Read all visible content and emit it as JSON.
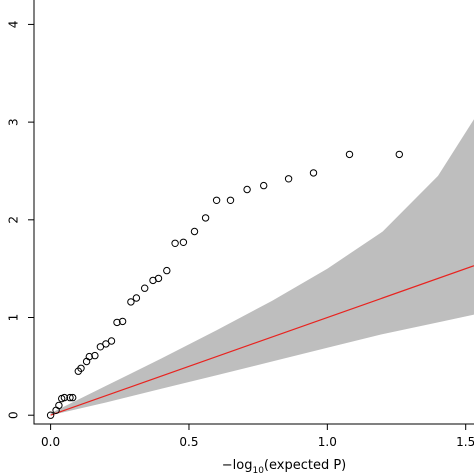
{
  "chart_data": {
    "type": "scatter",
    "title": "",
    "xlabel": {
      "prefix": "−log",
      "subscript": "10",
      "suffix": "(expected P)"
    },
    "ylabel": "",
    "xlim": [
      -0.06,
      1.53
    ],
    "ylim": [
      -0.09,
      4.25
    ],
    "xticks": [
      0.0,
      0.5,
      1.0,
      1.5
    ],
    "xtick_labels": [
      "0.0",
      "0.5",
      "1.0",
      "1.5"
    ],
    "yticks": [
      0,
      1,
      2,
      3,
      4
    ],
    "ytick_labels": [
      "0",
      "1",
      "2",
      "3",
      "4"
    ],
    "grid": false,
    "legend": "none",
    "points": {
      "x": [
        0.0,
        0.02,
        0.03,
        0.04,
        0.05,
        0.07,
        0.08,
        0.1,
        0.11,
        0.13,
        0.14,
        0.16,
        0.18,
        0.2,
        0.22,
        0.24,
        0.26,
        0.29,
        0.31,
        0.34,
        0.37,
        0.39,
        0.42,
        0.45,
        0.48,
        0.52,
        0.56,
        0.6,
        0.65,
        0.71,
        0.77,
        0.86,
        0.95,
        1.08,
        1.26
      ],
      "y": [
        0.0,
        0.05,
        0.1,
        0.17,
        0.18,
        0.18,
        0.18,
        0.45,
        0.48,
        0.55,
        0.6,
        0.61,
        0.7,
        0.73,
        0.76,
        0.95,
        0.96,
        1.16,
        1.2,
        1.3,
        1.38,
        1.4,
        1.48,
        1.76,
        1.77,
        1.88,
        2.02,
        2.2,
        2.2,
        2.31,
        2.35,
        2.42,
        2.48,
        2.67,
        2.67
      ]
    },
    "expected_line": {
      "x": [
        0.0,
        1.53
      ],
      "y": [
        0.0,
        1.53
      ]
    },
    "confidence_band": {
      "x": [
        0.0,
        0.2,
        0.4,
        0.6,
        0.8,
        1.0,
        1.2,
        1.4,
        1.53
      ],
      "upper": [
        0.02,
        0.3,
        0.58,
        0.87,
        1.17,
        1.5,
        1.88,
        2.45,
        3.03
      ],
      "lower": [
        0.0,
        0.13,
        0.27,
        0.41,
        0.55,
        0.69,
        0.83,
        0.95,
        1.03
      ]
    },
    "colors": {
      "line": "#e8231f",
      "band": "#bebebe",
      "points": "#000000",
      "axis": "#000000"
    }
  }
}
